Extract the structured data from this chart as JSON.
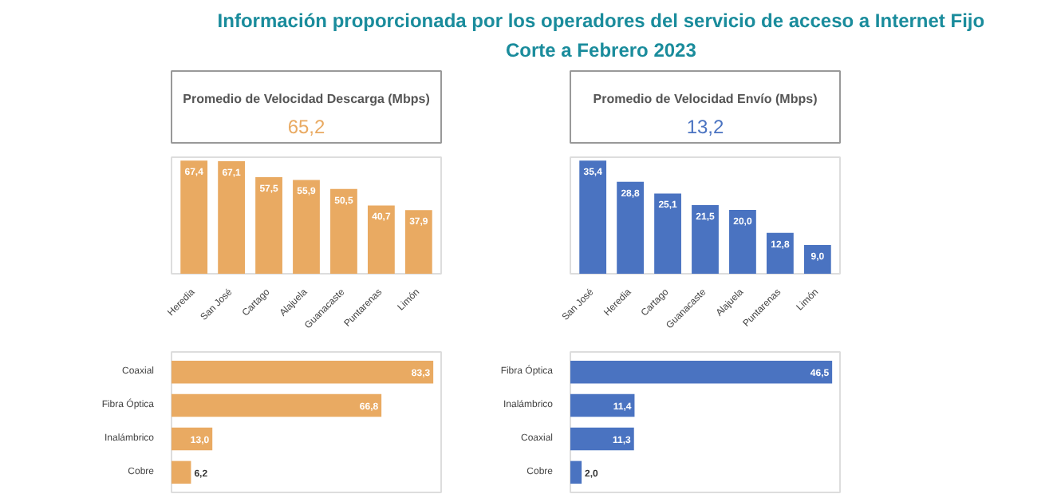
{
  "chart_data": [
    {
      "type": "other",
      "title": "Información proporcionada por los operadores del servicio de acceso a Internet Fijo",
      "subtitle": "Corte a Febrero 2023"
    },
    {
      "type": "other",
      "title": "Promedio de Velocidad Descarga (Mbps)",
      "annotations": [
        "65,2"
      ]
    },
    {
      "type": "bar",
      "categories": [
        "Heredia",
        "San José",
        "Cartago",
        "Alajuela",
        "Guanacaste",
        "Puntarenas",
        "Limón"
      ],
      "values": [
        67.4,
        67.1,
        57.5,
        55.9,
        50.5,
        40.7,
        37.9
      ],
      "value_labels": [
        "67,4",
        "67,1",
        "57,5",
        "55,9",
        "50,5",
        "40,7",
        "37,9"
      ],
      "color": "#e9aa62",
      "grid": false
    },
    {
      "type": "bar",
      "orientation": "horizontal",
      "categories": [
        "Coaxial",
        "Fibra Óptica",
        "Inalámbrico",
        "Cobre"
      ],
      "values": [
        83.3,
        66.8,
        13.0,
        6.2
      ],
      "value_labels": [
        "83,3",
        "66,8",
        "13,0",
        "6,2"
      ],
      "color": "#e9aa62",
      "grid": false
    },
    {
      "type": "other",
      "title": "Promedio de Velocidad Envío (Mbps)",
      "annotations": [
        "13,2"
      ]
    },
    {
      "type": "bar",
      "categories": [
        "San José",
        "Heredia",
        "Cartago",
        "Guanacaste",
        "Alajuela",
        "Puntarenas",
        "Limón"
      ],
      "values": [
        35.4,
        28.8,
        25.1,
        21.5,
        20.0,
        12.8,
        9.0
      ],
      "value_labels": [
        "35,4",
        "28,8",
        "25,1",
        "21,5",
        "20,0",
        "12,8",
        "9,0"
      ],
      "color": "#4a73c1",
      "grid": false
    },
    {
      "type": "bar",
      "orientation": "horizontal",
      "categories": [
        "Fibra Óptica",
        "Inalámbrico",
        "Coaxial",
        "Cobre"
      ],
      "values": [
        46.5,
        11.4,
        11.3,
        2.0
      ],
      "value_labels": [
        "46,5",
        "11,4",
        "11,3",
        "2,0"
      ],
      "color": "#4a73c1",
      "grid": false
    }
  ]
}
